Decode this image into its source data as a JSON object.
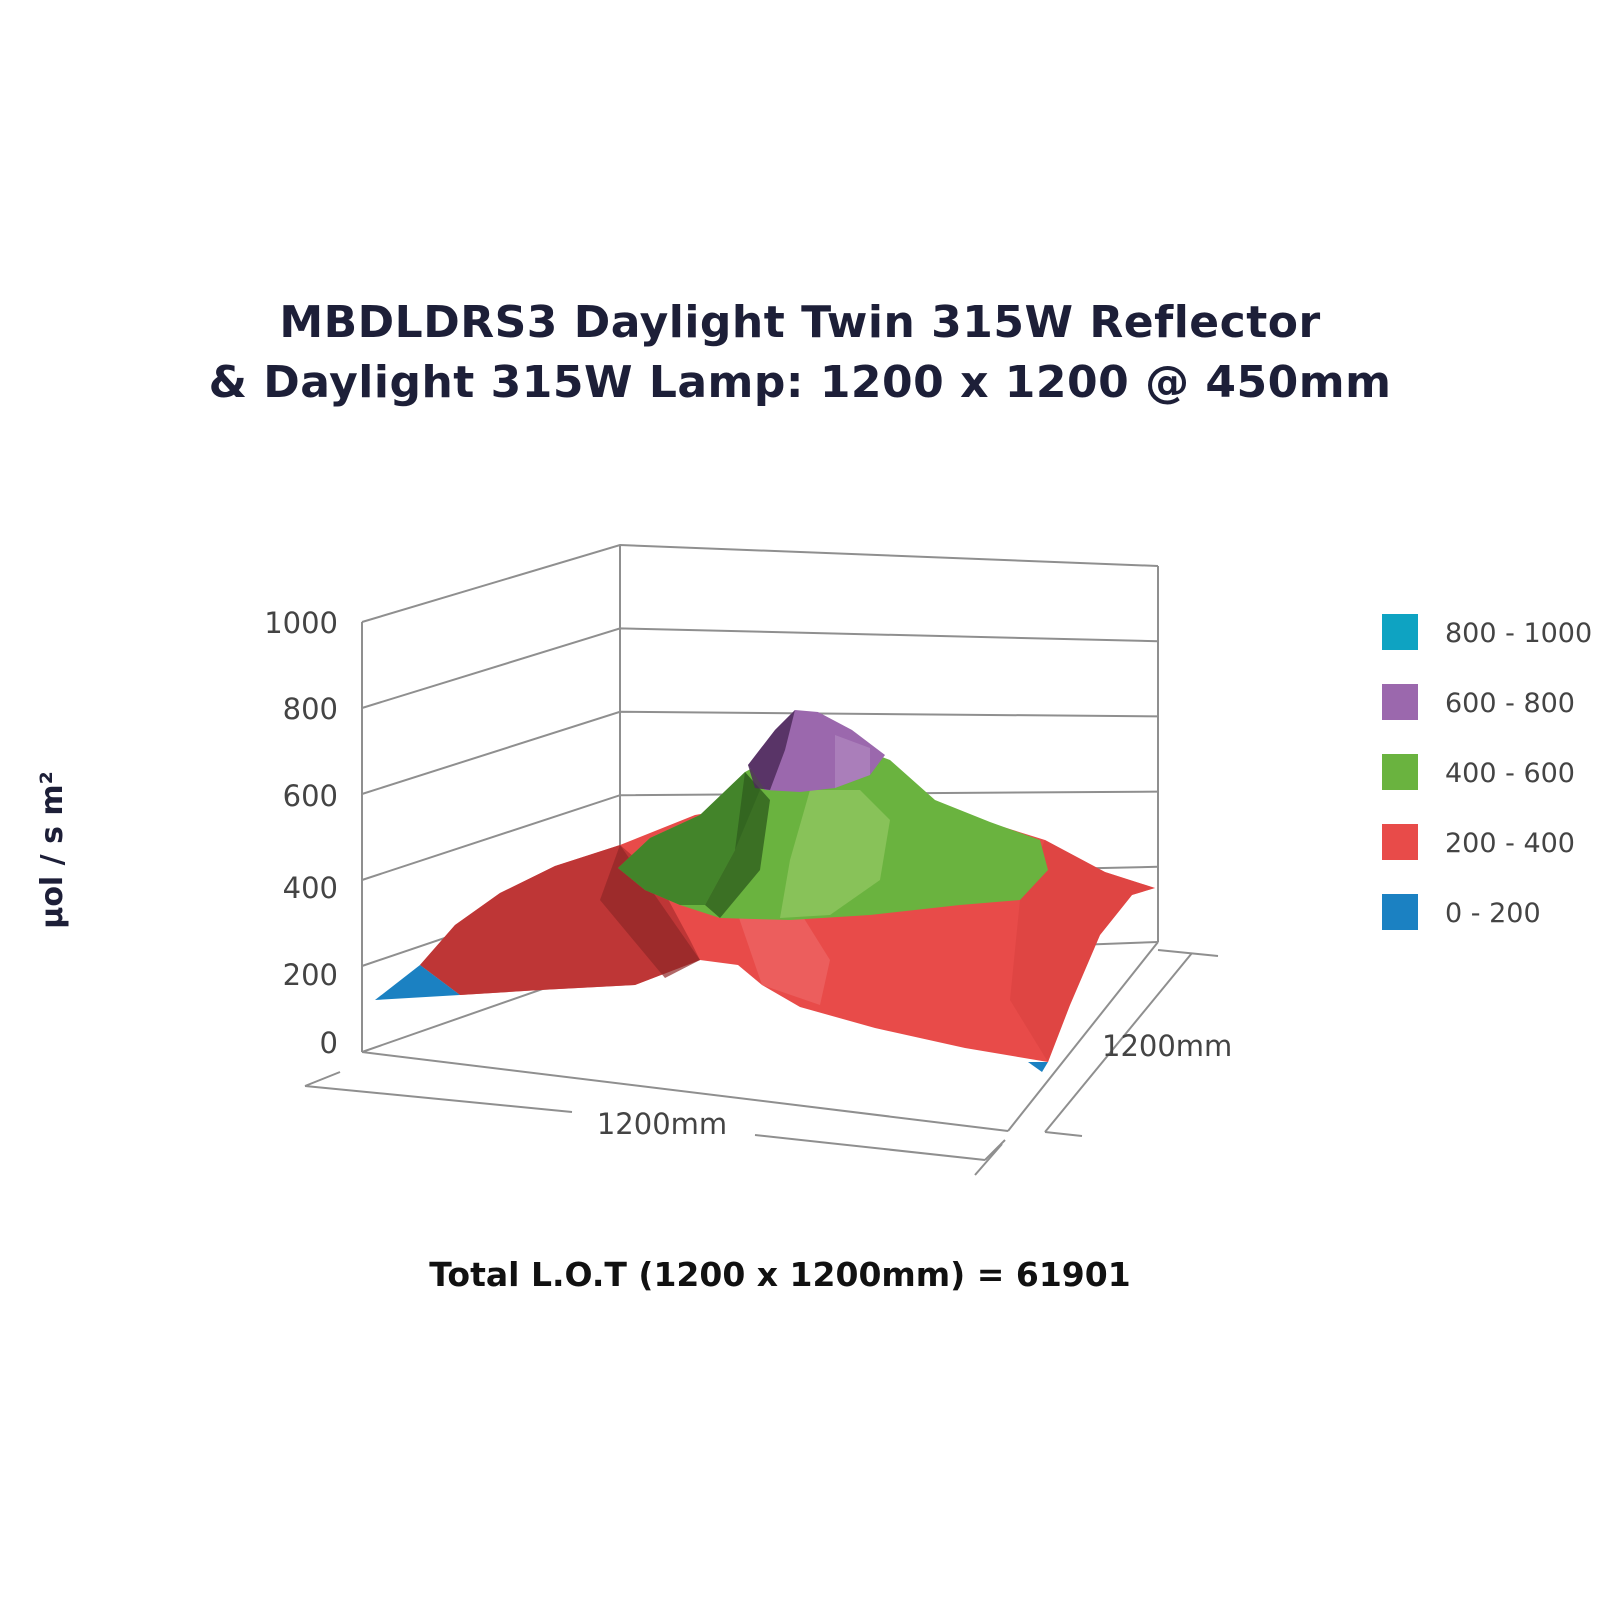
{
  "chart_data": {
    "type": "surface",
    "title_lines": [
      "MBDLDRS3 Daylight Twin 315W Reflector",
      "& Daylight 315W Lamp: 1200 x 1200 @ 450mm"
    ],
    "ylabel": "µol / s m²",
    "z_ticks": [
      "0",
      "200",
      "400",
      "600",
      "800",
      "1000"
    ],
    "zlim": [
      0,
      1000
    ],
    "x_axis_label": "1200mm",
    "depth_axis_label": "1200mm",
    "footer": "Total L.O.T (1200 x 1200mm) = 61901",
    "legend": [
      {
        "label": "800 - 1000",
        "color": "#0ea3c2"
      },
      {
        "label": "600 - 800",
        "color": "#9b68ad"
      },
      {
        "label": "400 - 600",
        "color": "#6ab33f"
      },
      {
        "label": "200 - 400",
        "color": "#e84b49"
      },
      {
        "label": "0 - 200",
        "color": "#1b81c2"
      }
    ],
    "peak_value": 780,
    "grid": true
  }
}
